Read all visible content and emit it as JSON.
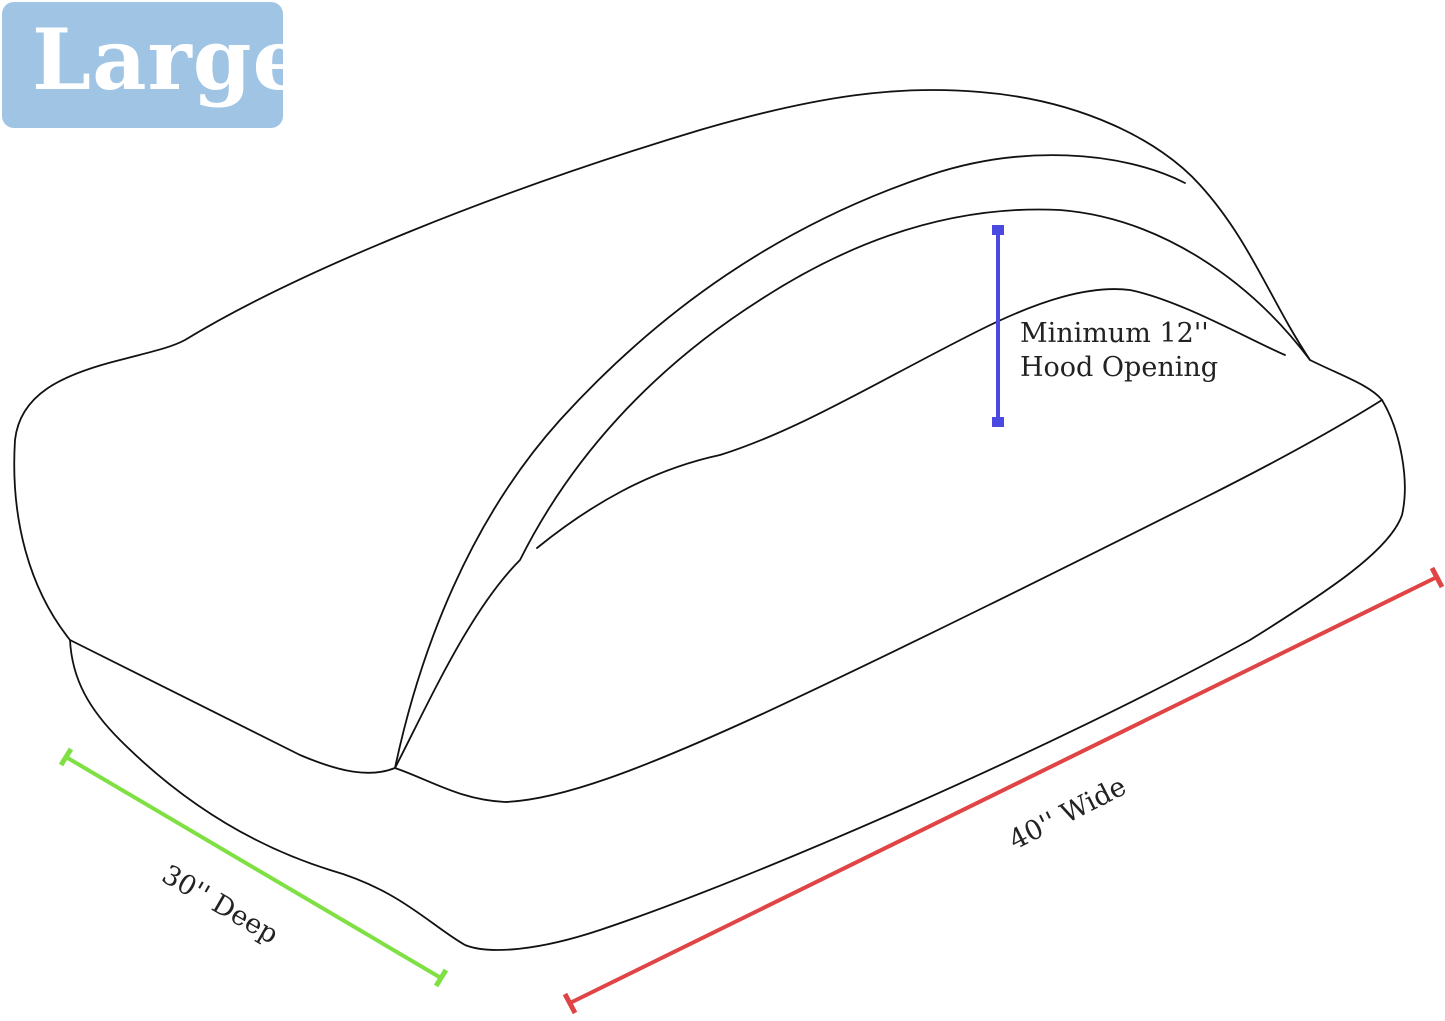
{
  "badge": {
    "label": "Large",
    "color": "#9fc4e4"
  },
  "dimensions": {
    "hood": {
      "line1": "Minimum 12''",
      "line2": "Hood Opening",
      "color": "#4a4ae0"
    },
    "depth": {
      "label": "30'' Deep",
      "color": "#7ee043"
    },
    "width": {
      "label": "40'' Wide",
      "color": "#e04444"
    }
  }
}
